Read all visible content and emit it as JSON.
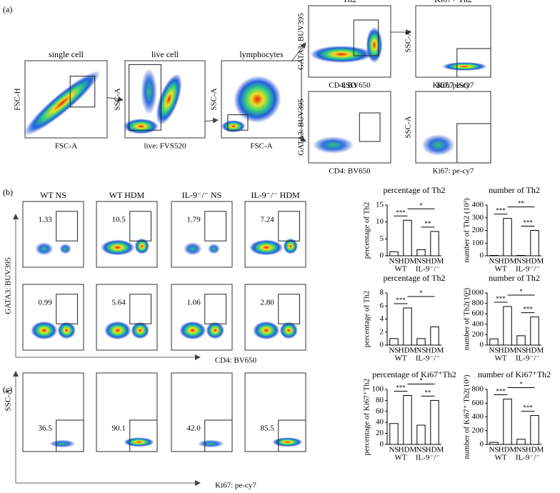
{
  "panels": [
    "(a)",
    "(b)",
    "(c)"
  ],
  "gating": [
    {
      "title": "single cell",
      "xlabel": "FSC-A",
      "ylabel": "FSC-H"
    },
    {
      "title": "live cell",
      "xlabel": "live: FVS520",
      "ylabel": "SSC-A"
    },
    {
      "title": "lymphocytes",
      "xlabel": "FSC-A",
      "ylabel": "SSC-A"
    },
    {
      "title": "Th2",
      "xlabel": "CD4: BV650",
      "ylabel": "GATA3: BUV395"
    },
    {
      "title": "Ki67+ Th2",
      "xlabel": "Ki67: pe-cy7",
      "ylabel": "SSC-A"
    },
    {
      "title": "ISO",
      "xlabel": "CD4: BV650",
      "ylabel": "GATA3: BUV395"
    },
    {
      "title": "Ki67 ISO",
      "xlabel": "Ki67: pe-cy7",
      "ylabel": "SSC-A"
    }
  ],
  "flow_b": {
    "columns": [
      "WT NS",
      "WT HDM",
      "IL-9⁻/⁻ NS",
      "IL-9⁻/⁻ HDM"
    ],
    "row1": [
      "1.33",
      "10.5",
      "1.79",
      "7.24"
    ],
    "row2": [
      "0.99",
      "5.64",
      "1.06",
      "2.80"
    ],
    "ylabel": "GATA3: BUV395",
    "xlabel": "CD4: BV650"
  },
  "flow_c": {
    "gates": [
      "36.5",
      "90.1",
      "42.0",
      "85.5"
    ],
    "ylabel": "SSC-A",
    "xlabel": "Ki67: pe-cy7"
  },
  "chart_data": [
    {
      "type": "bar",
      "title": "percentage of Th2",
      "ylabel": "percentage of Th2",
      "categories": [
        "NS",
        "HDM",
        "NS",
        "HDM"
      ],
      "groups": [
        "WT",
        "IL-9⁻/⁻"
      ],
      "values": [
        1.2,
        10.5,
        1.8,
        7.2
      ],
      "color": "#ffffff",
      "ylim": [
        0,
        15
      ],
      "yticks": [
        0,
        5,
        10,
        15
      ],
      "significance": [
        "***",
        "*",
        "**"
      ]
    },
    {
      "type": "bar",
      "title": "number of Th2",
      "ylabel": "number of Th2 (10³)",
      "categories": [
        "NS",
        "HDM",
        "NS",
        "HDM"
      ],
      "groups": [
        "WT",
        "IL-9⁻/⁻"
      ],
      "values": [
        3,
        295,
        3,
        200
      ],
      "color": "#ffffff",
      "ylim": [
        0,
        400
      ],
      "yticks": [
        0,
        100,
        200,
        300,
        400
      ],
      "significance": [
        "***",
        "**",
        "***"
      ]
    },
    {
      "type": "bar",
      "title": "percentage of Th2",
      "ylabel": "percentage of Th2",
      "categories": [
        "NS",
        "HDM",
        "NS",
        "HDM"
      ],
      "groups": [
        "WT",
        "IL-9⁻/⁻"
      ],
      "values": [
        1.0,
        5.7,
        1.0,
        2.8
      ],
      "color": "#ffffff",
      "ylim": [
        0,
        8
      ],
      "yticks": [
        0,
        2,
        4,
        6,
        8
      ],
      "significance": [
        "***",
        "*"
      ]
    },
    {
      "type": "bar",
      "title": "number of Th2",
      "ylabel": "number of Th2(10³)",
      "categories": [
        "NS",
        "HDM",
        "NS",
        "HDM"
      ],
      "groups": [
        "WT",
        "IL-9⁻/⁻"
      ],
      "values": [
        120,
        740,
        180,
        540
      ],
      "color": "#ffffff",
      "ylim": [
        0,
        1000
      ],
      "yticks": [
        0,
        200,
        400,
        600,
        800,
        1000
      ],
      "significance": [
        "***",
        "*",
        "***"
      ]
    },
    {
      "type": "bar",
      "title": "percentage of Ki67⁺Th2",
      "ylabel": "percentage of Ki67⁺Th2",
      "categories": [
        "NS",
        "HDM",
        "NS",
        "HDM"
      ],
      "groups": [
        "WT",
        "IL-9⁻/⁻"
      ],
      "values": [
        38,
        89,
        35,
        80
      ],
      "color": "#ffffff",
      "ylim": [
        0,
        100
      ],
      "yticks": [
        0,
        20,
        40,
        60,
        80,
        100
      ],
      "significance": [
        "***",
        "*",
        "**"
      ]
    },
    {
      "type": "bar",
      "title": "number of Ki67⁺Th2",
      "ylabel": "number of Ki67⁺ Th2(10³)",
      "categories": [
        "NS",
        "HDM",
        "NS",
        "HDM"
      ],
      "groups": [
        "WT",
        "IL-9⁻/⁻"
      ],
      "values": [
        30,
        660,
        75,
        420
      ],
      "color": "#ffffff",
      "ylim": [
        0,
        800
      ],
      "yticks": [
        0,
        200,
        400,
        600,
        800
      ],
      "significance": [
        "***",
        "*",
        "***"
      ]
    }
  ]
}
